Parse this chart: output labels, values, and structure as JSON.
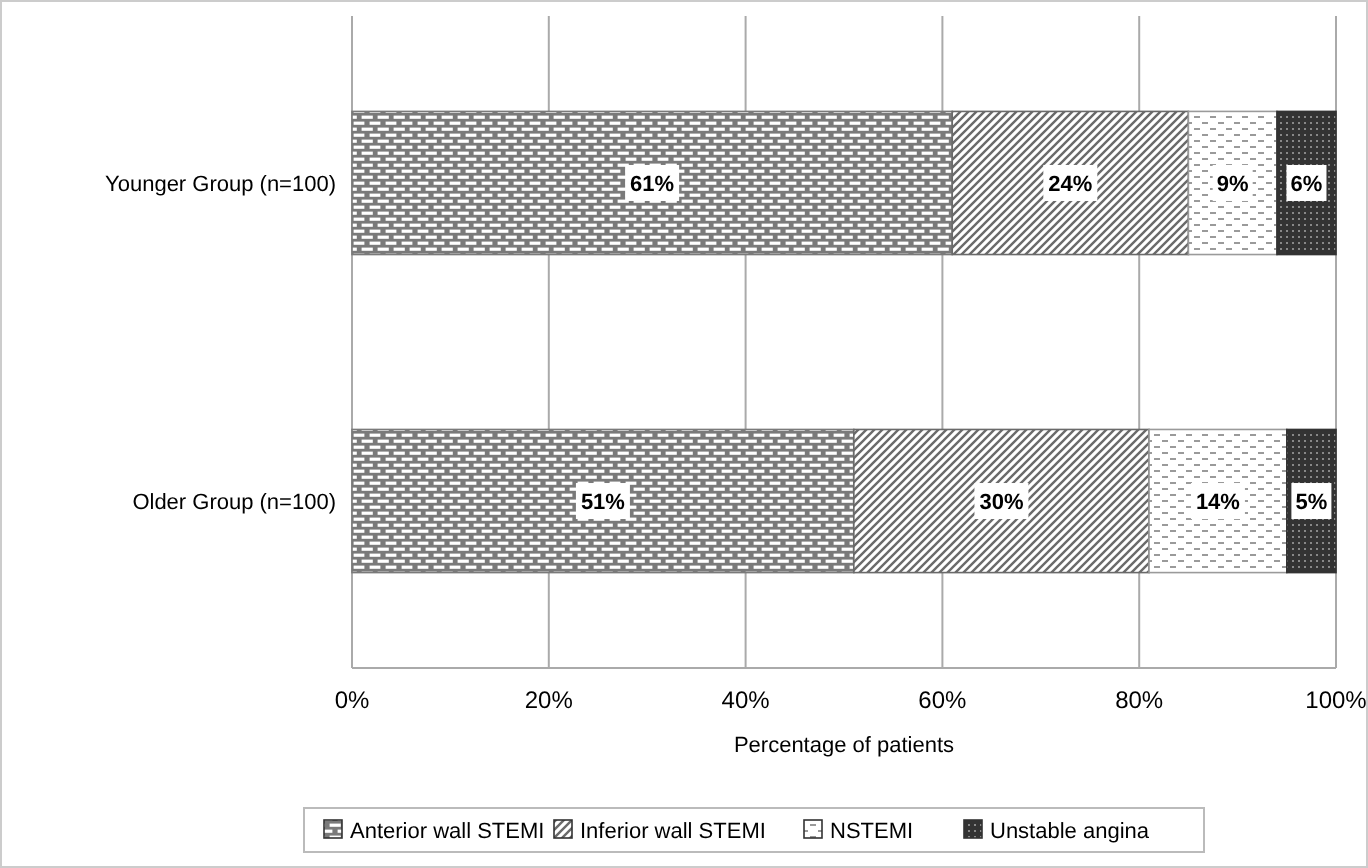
{
  "chart_data": {
    "type": "bar",
    "orientation": "horizontal",
    "stacked": true,
    "categories": [
      "Younger Group (n=100)",
      "Older Group (n=100)"
    ],
    "series": [
      {
        "name": "Anterior wall STEMI",
        "color": "#7a7a7a",
        "values": [
          61,
          51
        ],
        "value_labels": [
          "61%",
          "51%"
        ]
      },
      {
        "name": "Inferior wall STEMI",
        "color": "#6a6a6a",
        "values": [
          24,
          30
        ],
        "value_labels": [
          "24%",
          "30%"
        ]
      },
      {
        "name": "NSTEMI",
        "color": "#9a9a9a",
        "values": [
          9,
          14
        ],
        "value_labels": [
          "9%",
          "14%"
        ]
      },
      {
        "name": "Unstable angina",
        "color": "#333333",
        "values": [
          6,
          5
        ],
        "value_labels": [
          "6%",
          "5%"
        ]
      }
    ],
    "xlim": [
      0,
      100
    ],
    "xticks": [
      {
        "value": 0,
        "label": "0%"
      },
      {
        "value": 20,
        "label": "20%"
      },
      {
        "value": 40,
        "label": "40%"
      },
      {
        "value": 60,
        "label": "60%"
      },
      {
        "value": 80,
        "label": "80%"
      },
      {
        "value": 100,
        "label": "100%"
      }
    ],
    "xlabel": "Percentage of patients",
    "grid": "x",
    "legend": "bottom"
  }
}
